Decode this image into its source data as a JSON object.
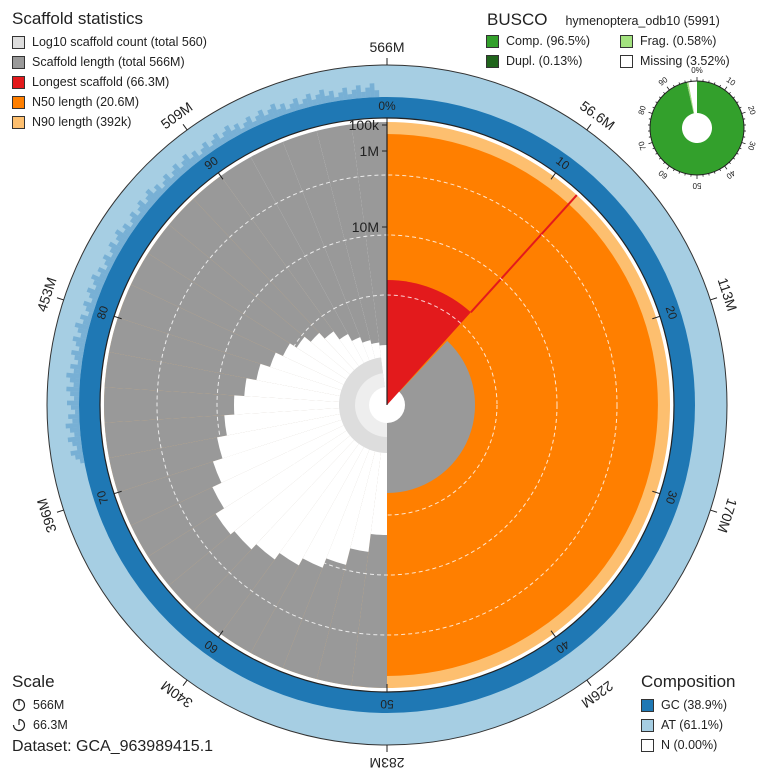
{
  "scaffold_legend": {
    "title": "Scaffold statistics",
    "items": [
      {
        "label": "Log10 scaffold count (total 560)",
        "color": "#dddddd"
      },
      {
        "label": "Scaffold length (total 566M)",
        "color": "#999999"
      },
      {
        "label": "Longest scaffold (66.3M)",
        "color": "#e31a1c"
      },
      {
        "label": "N50 length (20.6M)",
        "color": "#ff7f00"
      },
      {
        "label": "N90 length (392k)",
        "color": "#fdbf6f"
      }
    ]
  },
  "busco": {
    "title": "BUSCO",
    "lineage": "hymenoptera_odb10 (5991)",
    "items": [
      {
        "label": "Comp. (96.5%)",
        "color": "#33a02c"
      },
      {
        "label": "Frag. (0.58%)",
        "color": "#a3e27f"
      },
      {
        "label": "Dupl. (0.13%)",
        "color": "#20641c"
      },
      {
        "label": "Missing (3.52%)",
        "color": "#ffffff"
      }
    ],
    "ring_ticks": [
      "0%",
      "10",
      "20",
      "30",
      "40",
      "50",
      "60",
      "70",
      "80",
      "90"
    ]
  },
  "scale": {
    "title": "Scale",
    "items": [
      "566M",
      "66.3M"
    ]
  },
  "composition": {
    "title": "Composition",
    "items": [
      {
        "label": "GC (38.9%)",
        "color": "#1f78b4"
      },
      {
        "label": "AT (61.1%)",
        "color": "#a6cee3"
      },
      {
        "label": "N (0.00%)",
        "color": "#ffffff"
      }
    ]
  },
  "dataset_label": "Dataset: GCA_963989415.1",
  "chart_data": {
    "type": "snail",
    "total_length_M": 566,
    "scaffold_count": 560,
    "longest_scaffold_M": 66.3,
    "n50_M": 20.6,
    "n90_k": 392,
    "gc_percent": 38.9,
    "at_percent": 61.1,
    "n_percent": 0.0,
    "outer_length_ticks": [
      "566M",
      "56.6M",
      "113M",
      "170M",
      "226M",
      "283M",
      "340M",
      "396M",
      "453M",
      "509M"
    ],
    "inner_percent_ticks": [
      "0%",
      "10",
      "20",
      "30",
      "40",
      "50",
      "60",
      "70",
      "80",
      "90"
    ],
    "radial_scale_labels": [
      "100k",
      "1M",
      "10M"
    ],
    "n50_percent": 50,
    "n90_percent": 90,
    "longest_scaffold_percent": 11.7
  }
}
